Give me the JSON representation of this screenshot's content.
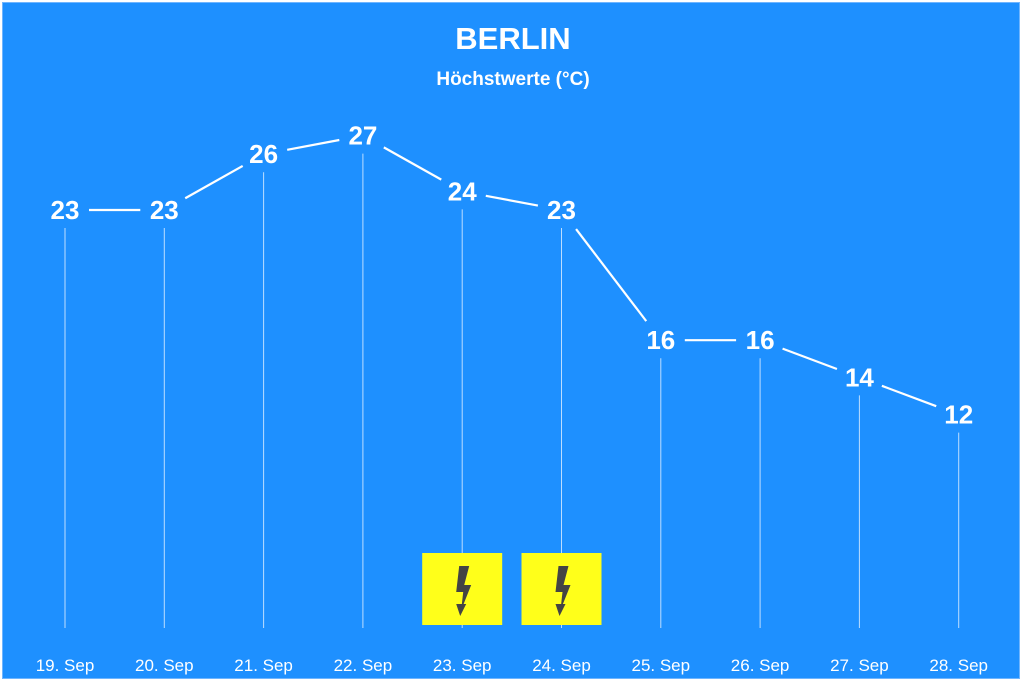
{
  "chart_data": {
    "type": "line",
    "title": "BERLIN",
    "subtitle": "Höchstwerte (°C)",
    "categories": [
      "19. Sep",
      "20. Sep",
      "21. Sep",
      "22. Sep",
      "23. Sep",
      "24. Sep",
      "25. Sep",
      "26. Sep",
      "27. Sep",
      "28. Sep"
    ],
    "values": [
      23,
      23,
      26,
      27,
      24,
      23,
      16,
      16,
      14,
      12
    ],
    "data_labels": [
      "23",
      "23",
      "26",
      "27",
      "24",
      "23",
      "16",
      "16",
      "14",
      "12"
    ],
    "weather_icons": [
      {
        "category": "23. Sep",
        "icon": "lightning-warning-icon"
      },
      {
        "category": "24. Sep",
        "icon": "lightning-warning-icon"
      }
    ],
    "grid": false,
    "legend": "none",
    "colors": {
      "background": "#1e90ff",
      "line": "#ffffff",
      "icon_bg": "#ffff1a",
      "icon_bolt": "#444444"
    }
  }
}
